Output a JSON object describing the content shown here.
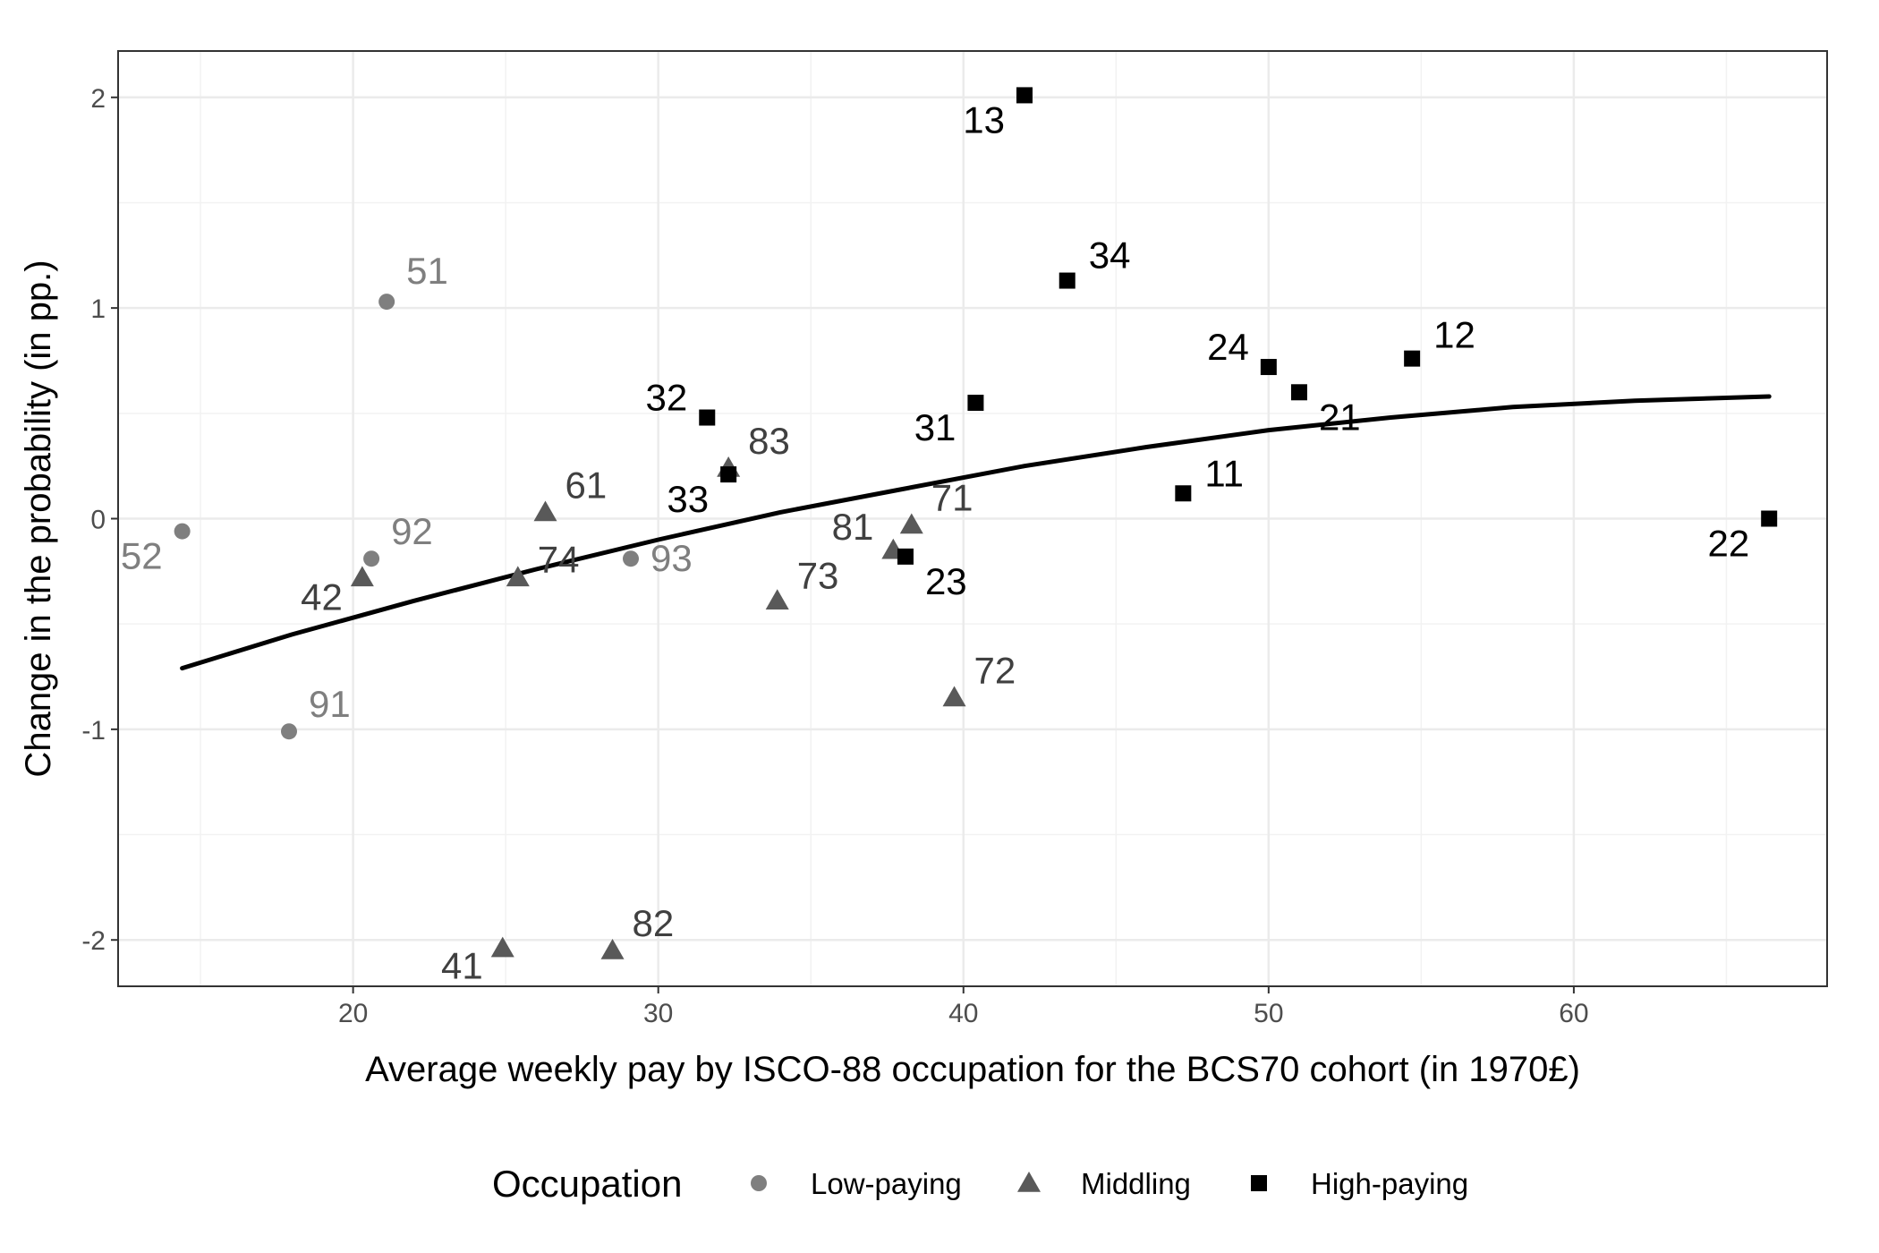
{
  "chart_data": {
    "type": "scatter",
    "title": "",
    "xlabel": "Average weekly pay by ISCO-88 occupation for the BCS70 cohort (in 1970£)",
    "ylabel": "Change in the probability (in pp.)",
    "xlim": [
      12.3,
      68.3
    ],
    "ylim": [
      -2.22,
      2.22
    ],
    "x_ticks": [
      20,
      30,
      40,
      50,
      60
    ],
    "y_ticks": [
      -2,
      -1,
      0,
      1,
      2
    ],
    "x_tick_labels": [
      "20",
      "30",
      "40",
      "50",
      "60"
    ],
    "y_tick_labels": [
      "-2",
      "-1",
      "0",
      "1",
      "2"
    ],
    "grid": true,
    "legend": {
      "title": "Occupation",
      "position": "bottom"
    },
    "series": [
      {
        "name": "Low-paying",
        "shape": "circle",
        "color": "#7f7f7f",
        "points": [
          {
            "label": "51",
            "x": 21.1,
            "y": 1.03
          },
          {
            "label": "52",
            "x": 14.4,
            "y": -0.06
          },
          {
            "label": "91",
            "x": 17.9,
            "y": -1.01
          },
          {
            "label": "92",
            "x": 20.6,
            "y": -0.19
          },
          {
            "label": "93",
            "x": 29.1,
            "y": -0.19
          }
        ]
      },
      {
        "name": "Middling",
        "shape": "triangle",
        "color": "#595959",
        "points": [
          {
            "label": "41",
            "x": 24.9,
            "y": -2.04
          },
          {
            "label": "42",
            "x": 20.3,
            "y": -0.28
          },
          {
            "label": "61",
            "x": 26.3,
            "y": 0.03
          },
          {
            "label": "71",
            "x": 38.3,
            "y": -0.03
          },
          {
            "label": "72",
            "x": 39.7,
            "y": -0.85
          },
          {
            "label": "73",
            "x": 33.9,
            "y": -0.39
          },
          {
            "label": "74",
            "x": 25.4,
            "y": -0.28
          },
          {
            "label": "81",
            "x": 37.7,
            "y": -0.15
          },
          {
            "label": "82",
            "x": 28.5,
            "y": -2.05
          },
          {
            "label": "83",
            "x": 32.3,
            "y": 0.24
          }
        ]
      },
      {
        "name": "High-paying",
        "shape": "square",
        "color": "#000000",
        "points": [
          {
            "label": "11",
            "x": 47.2,
            "y": 0.12
          },
          {
            "label": "12",
            "x": 54.7,
            "y": 0.76
          },
          {
            "label": "13",
            "x": 42.0,
            "y": 2.01
          },
          {
            "label": "21",
            "x": 51.0,
            "y": 0.6
          },
          {
            "label": "22",
            "x": 66.4,
            "y": 0.0
          },
          {
            "label": "23",
            "x": 38.1,
            "y": -0.18
          },
          {
            "label": "24",
            "x": 50.0,
            "y": 0.72
          },
          {
            "label": "31",
            "x": 40.4,
            "y": 0.55
          },
          {
            "label": "32",
            "x": 31.6,
            "y": 0.48
          },
          {
            "label": "33",
            "x": 32.3,
            "y": 0.21
          },
          {
            "label": "34",
            "x": 43.4,
            "y": 1.13
          }
        ]
      }
    ],
    "fit_curve": {
      "x": [
        14.4,
        18,
        22,
        26,
        30,
        34,
        38,
        42,
        46,
        50,
        54,
        58,
        62,
        66.4
      ],
      "y": [
        -0.71,
        -0.55,
        -0.39,
        -0.24,
        -0.1,
        0.03,
        0.14,
        0.25,
        0.34,
        0.42,
        0.48,
        0.53,
        0.56,
        0.58
      ]
    }
  }
}
